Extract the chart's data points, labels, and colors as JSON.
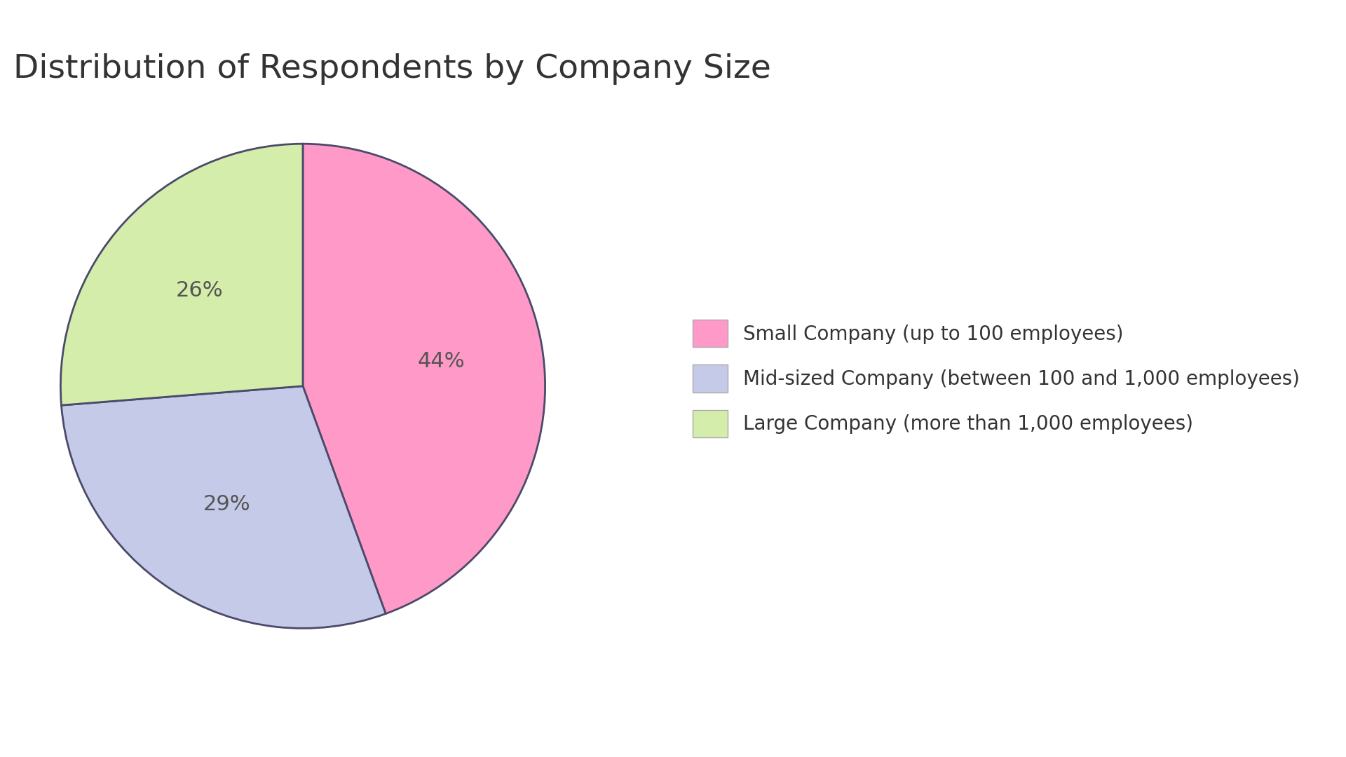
{
  "title": "Distribution of Respondents by Company Size",
  "slices": [
    44,
    29,
    26
  ],
  "pct_labels": [
    "44%",
    "29%",
    "26%"
  ],
  "colors": [
    "#FF99C8",
    "#C5CAE9",
    "#D4EDAB"
  ],
  "edge_color": "#4a4a6a",
  "legend_labels": [
    "Small Company (up to 100 employees)",
    "Mid-sized Company (between 100 and 1,000 employees)",
    "Large Company (more than 1,000 employees)"
  ],
  "background_color": "#ffffff",
  "title_fontsize": 34,
  "title_color": "#333333",
  "pct_fontsize": 22,
  "pct_color": "#555555",
  "legend_fontsize": 20,
  "startangle": 90
}
